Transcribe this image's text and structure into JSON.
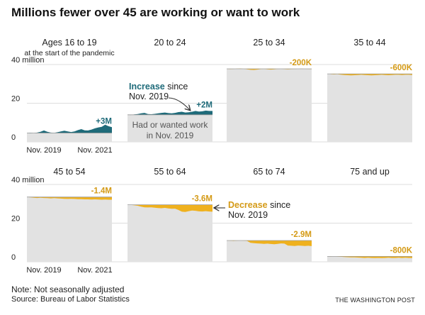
{
  "title": "Millions fewer over 45 are working or want to work",
  "note": "Note: Not seasonally adjusted",
  "source": "Source: Bureau of Labor Statistics",
  "credit": "THE WASHINGTON POST",
  "colors": {
    "baseline_fill": "#e2e2e2",
    "baseline_line": "#9a9a9a",
    "increase": "#1f6b7a",
    "decrease": "#efb11e",
    "increase_text": "#1f6b7a",
    "decrease_text": "#d49a16",
    "text": "#222222",
    "grid": "#dddddd",
    "baseline_text": "#555555"
  },
  "chart_data": {
    "type": "area",
    "subtitle_first_panel": "at the start of the pandemic",
    "y_tick_labels": [
      "0",
      "20",
      "40 million"
    ],
    "y_ticks": [
      0,
      20,
      40
    ],
    "ylim": [
      0,
      40
    ],
    "x_tick_labels": [
      "Nov. 2019",
      "Nov. 2021"
    ],
    "annotations": {
      "increase": {
        "word": "Increase",
        "rest": " since",
        "line2": "Nov. 2019"
      },
      "baseline": {
        "line1": "Had or wanted work",
        "line2": "in Nov. 2019"
      },
      "decrease": {
        "word": "Decrease",
        "rest": " since",
        "line2": "Nov. 2019"
      }
    },
    "series": [
      {
        "name": "Ages 16 to 19",
        "change_label": "+3M",
        "direction": "increase",
        "baseline": [
          4.6,
          4.6,
          4.6,
          4.6,
          4.6,
          4.6,
          4.6,
          4.6,
          4.6,
          4.6,
          4.6,
          4.6,
          4.6,
          4.6,
          4.6,
          4.6,
          4.6,
          4.6,
          4.6,
          4.6,
          4.6,
          4.6,
          4.6,
          4.6,
          4.6,
          4.6
        ],
        "values": [
          4.6,
          4.4,
          4.6,
          4.8,
          5.2,
          5.9,
          5.2,
          4.8,
          4.7,
          5.0,
          5.4,
          5.8,
          5.4,
          5.1,
          5.4,
          6.1,
          6.6,
          6.0,
          5.9,
          6.4,
          7.0,
          7.5,
          7.8,
          8.9,
          8.1,
          7.6
        ]
      },
      {
        "name": "20 to 24",
        "change_label": "+2M",
        "direction": "increase",
        "baseline": [
          14.0,
          14.0,
          14.0,
          14.0,
          14.0,
          14.0,
          14.0,
          14.0,
          14.0,
          14.0,
          14.0,
          14.0,
          14.0,
          14.0,
          14.0,
          14.0,
          14.0,
          14.0,
          14.0,
          14.0,
          14.0,
          14.0,
          14.0,
          14.0,
          14.0,
          14.0
        ],
        "values": [
          14.0,
          13.9,
          14.2,
          14.4,
          14.8,
          15.0,
          14.4,
          14.3,
          14.5,
          14.8,
          15.0,
          15.2,
          14.9,
          14.8,
          15.0,
          15.4,
          15.6,
          15.2,
          15.3,
          15.6,
          16.0,
          15.7,
          15.8,
          16.2,
          16.0,
          16.0
        ]
      },
      {
        "name": "25 to 34",
        "change_label": "-200K",
        "direction": "decrease",
        "baseline": [
          37.8,
          37.8,
          37.8,
          37.8,
          37.8,
          37.8,
          37.8,
          37.8,
          37.8,
          37.8,
          37.8,
          37.8,
          37.8,
          37.8,
          37.8,
          37.8,
          37.8,
          37.8,
          37.8,
          37.8,
          37.8,
          37.8,
          37.8,
          37.8,
          37.8,
          37.8
        ],
        "values": [
          37.8,
          37.6,
          37.7,
          37.9,
          38.0,
          37.8,
          37.5,
          37.3,
          37.2,
          37.4,
          37.6,
          37.7,
          37.5,
          37.4,
          37.5,
          37.7,
          37.8,
          37.6,
          37.5,
          37.6,
          37.7,
          37.8,
          37.9,
          37.8,
          37.7,
          37.6
        ]
      },
      {
        "name": "35 to 44",
        "change_label": "-600K",
        "direction": "decrease",
        "baseline": [
          35.2,
          35.2,
          35.2,
          35.2,
          35.2,
          35.2,
          35.2,
          35.2,
          35.2,
          35.2,
          35.2,
          35.2,
          35.2,
          35.2,
          35.2,
          35.2,
          35.2,
          35.2,
          35.2,
          35.2,
          35.2,
          35.2,
          35.2,
          35.2,
          35.2,
          35.2
        ],
        "values": [
          35.2,
          35.0,
          34.9,
          35.0,
          34.8,
          34.6,
          34.5,
          34.4,
          34.5,
          34.6,
          34.7,
          34.6,
          34.5,
          34.4,
          34.5,
          34.6,
          34.7,
          34.6,
          34.5,
          34.6,
          34.7,
          34.7,
          34.6,
          34.7,
          34.7,
          34.6
        ]
      },
      {
        "name": "45 to 54",
        "change_label": "-1.4M",
        "direction": "decrease",
        "baseline": [
          33.5,
          33.5,
          33.5,
          33.5,
          33.5,
          33.5,
          33.5,
          33.5,
          33.5,
          33.5,
          33.5,
          33.5,
          33.5,
          33.5,
          33.5,
          33.5,
          33.5,
          33.5,
          33.5,
          33.5,
          33.5,
          33.5,
          33.5,
          33.5,
          33.5,
          33.5
        ],
        "values": [
          33.5,
          33.3,
          33.1,
          33.0,
          33.1,
          33.0,
          32.9,
          32.8,
          32.9,
          32.8,
          32.7,
          32.6,
          32.5,
          32.6,
          32.5,
          32.4,
          32.4,
          32.3,
          32.3,
          32.2,
          32.3,
          32.2,
          32.1,
          32.2,
          32.1,
          32.1
        ]
      },
      {
        "name": "55 to 64",
        "change_label": "-3.6M",
        "direction": "decrease",
        "baseline": [
          29.5,
          29.5,
          29.5,
          29.5,
          29.5,
          29.5,
          29.5,
          29.5,
          29.5,
          29.5,
          29.5,
          29.5,
          29.5,
          29.5,
          29.5,
          29.5,
          29.5,
          29.5,
          29.5,
          29.5,
          29.5,
          29.5,
          29.5,
          29.5,
          29.5,
          29.5
        ],
        "values": [
          29.5,
          29.4,
          29.2,
          29.0,
          28.5,
          28.2,
          28.1,
          28.2,
          28.0,
          27.8,
          27.7,
          27.9,
          27.6,
          27.4,
          27.5,
          26.8,
          25.9,
          25.8,
          26.2,
          26.5,
          26.4,
          26.1,
          26.0,
          26.2,
          26.0,
          25.9
        ]
      },
      {
        "name": "65 to 74",
        "change_label": "-2.9M",
        "direction": "decrease",
        "baseline": [
          11.0,
          11.0,
          11.0,
          11.0,
          11.0,
          11.0,
          11.0,
          11.0,
          11.0,
          11.0,
          11.0,
          11.0,
          11.0,
          11.0,
          11.0,
          11.0,
          11.0,
          11.0,
          11.0,
          11.0,
          11.0,
          11.0,
          11.0,
          11.0,
          11.0,
          11.0
        ],
        "values": [
          11.0,
          10.9,
          10.8,
          10.9,
          11.0,
          10.9,
          10.8,
          9.8,
          9.6,
          9.5,
          9.4,
          9.3,
          9.4,
          9.2,
          9.1,
          9.3,
          9.5,
          9.4,
          8.4,
          8.3,
          8.2,
          8.4,
          8.3,
          8.2,
          8.3,
          8.1
        ]
      },
      {
        "name": "75 and up",
        "change_label": "-800K",
        "direction": "decrease",
        "baseline": [
          2.8,
          2.8,
          2.8,
          2.8,
          2.8,
          2.8,
          2.8,
          2.8,
          2.8,
          2.8,
          2.8,
          2.8,
          2.8,
          2.8,
          2.8,
          2.8,
          2.8,
          2.8,
          2.8,
          2.8,
          2.8,
          2.8,
          2.8,
          2.8,
          2.8,
          2.8
        ],
        "values": [
          2.8,
          2.7,
          2.8,
          2.7,
          2.6,
          2.5,
          2.4,
          2.3,
          2.3,
          2.2,
          2.1,
          2.0,
          2.1,
          2.0,
          1.9,
          2.0,
          1.9,
          2.0,
          2.1,
          2.0,
          2.0,
          2.1,
          2.0,
          2.1,
          2.0,
          2.0
        ]
      }
    ]
  }
}
